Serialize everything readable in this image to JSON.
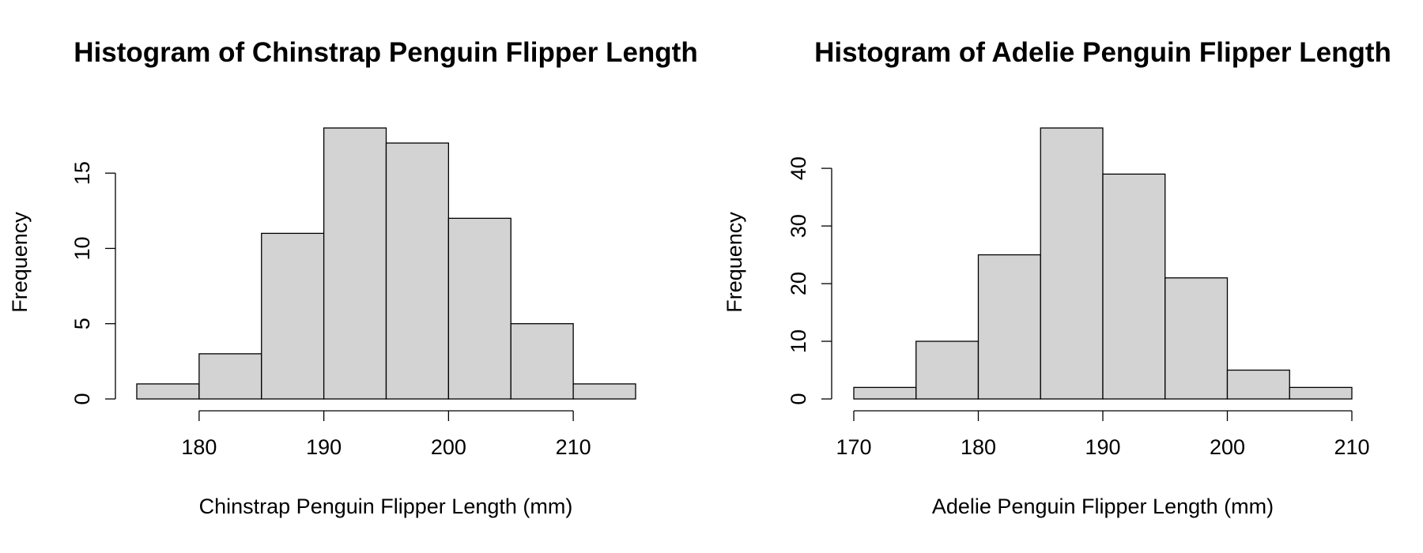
{
  "chart_data": [
    {
      "type": "bar",
      "title": "Histogram of Chinstrap Penguin Flipper Length",
      "xlabel": "Chinstrap Penguin Flipper Length (mm)",
      "ylabel": "Frequency",
      "bin_edges": [
        175,
        180,
        185,
        190,
        195,
        200,
        205,
        210,
        215
      ],
      "values": [
        1,
        3,
        11,
        18,
        17,
        12,
        5,
        1
      ],
      "xlim": [
        175,
        215
      ],
      "ylim": [
        0,
        18
      ],
      "x_ticks": [
        180,
        190,
        200,
        210
      ],
      "y_ticks": [
        0,
        5,
        10,
        15
      ],
      "bar_color": "#d3d3d3",
      "grid": false,
      "legend": "none"
    },
    {
      "type": "bar",
      "title": "Histogram of Adelie Penguin Flipper Length",
      "xlabel": "Adelie Penguin Flipper Length (mm)",
      "ylabel": "Frequency",
      "bin_edges": [
        170,
        175,
        180,
        185,
        190,
        195,
        200,
        205,
        210
      ],
      "values": [
        2,
        10,
        25,
        47,
        39,
        21,
        5,
        2
      ],
      "xlim": [
        170,
        210
      ],
      "ylim": [
        0,
        47
      ],
      "x_ticks": [
        170,
        180,
        190,
        200,
        210
      ],
      "y_ticks": [
        0,
        10,
        20,
        30,
        40
      ],
      "bar_color": "#d3d3d3",
      "grid": false,
      "legend": "none"
    }
  ]
}
